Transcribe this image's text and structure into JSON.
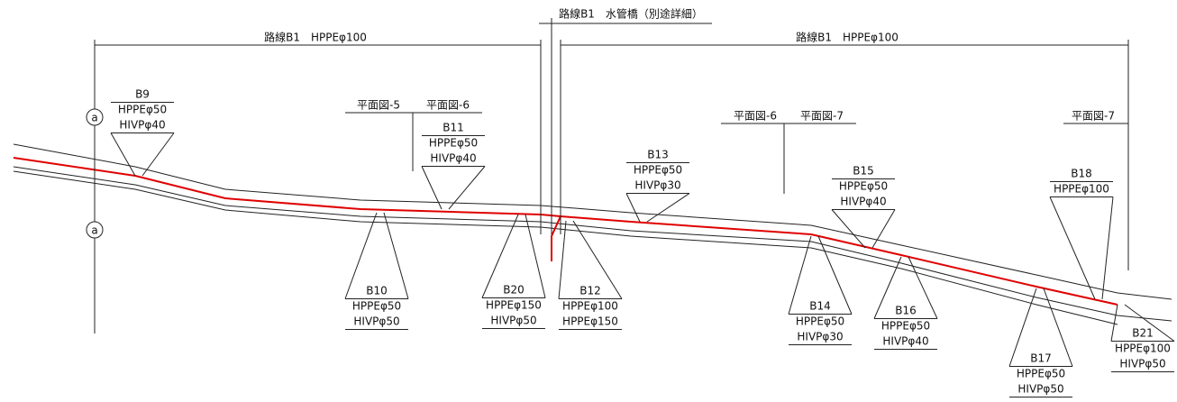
{
  "dimensions": [
    {
      "label": "路線B1　HPPEφ100"
    },
    {
      "label": "路線B1　水管橋（別途詳細）"
    },
    {
      "label": "路線B1　HPPEφ100"
    }
  ],
  "sheets": [
    "平面図-5",
    "平面図-6",
    "平面図-6",
    "平面図-7",
    "平面図-7"
  ],
  "markers": [
    "a",
    "a"
  ],
  "branches": [
    {
      "id": "B9",
      "lines": [
        "HPPEφ50",
        "HIVPφ40"
      ]
    },
    {
      "id": "B10",
      "lines": [
        "HPPEφ50",
        "HIVPφ50"
      ]
    },
    {
      "id": "B11",
      "lines": [
        "HPPEφ50",
        "HIVPφ40"
      ]
    },
    {
      "id": "B12",
      "lines": [
        "HPPEφ100",
        "HPPEφ150"
      ]
    },
    {
      "id": "B13",
      "lines": [
        "HPPEφ50",
        "HIVPφ30"
      ]
    },
    {
      "id": "B14",
      "lines": [
        "HPPEφ50",
        "HIVPφ30"
      ]
    },
    {
      "id": "B15",
      "lines": [
        "HPPEφ50",
        "HIVPφ40"
      ]
    },
    {
      "id": "B16",
      "lines": [
        "HPPEφ50",
        "HIVPφ40"
      ]
    },
    {
      "id": "B17",
      "lines": [
        "HPPEφ50",
        "HIVPφ50"
      ]
    },
    {
      "id": "B18",
      "lines": [
        "HPPEφ100"
      ]
    },
    {
      "id": "B20",
      "lines": [
        "HPPEφ150",
        "HIVPφ50"
      ]
    },
    {
      "id": "B21",
      "lines": [
        "HPPEφ100",
        "HIVPφ50"
      ]
    }
  ]
}
